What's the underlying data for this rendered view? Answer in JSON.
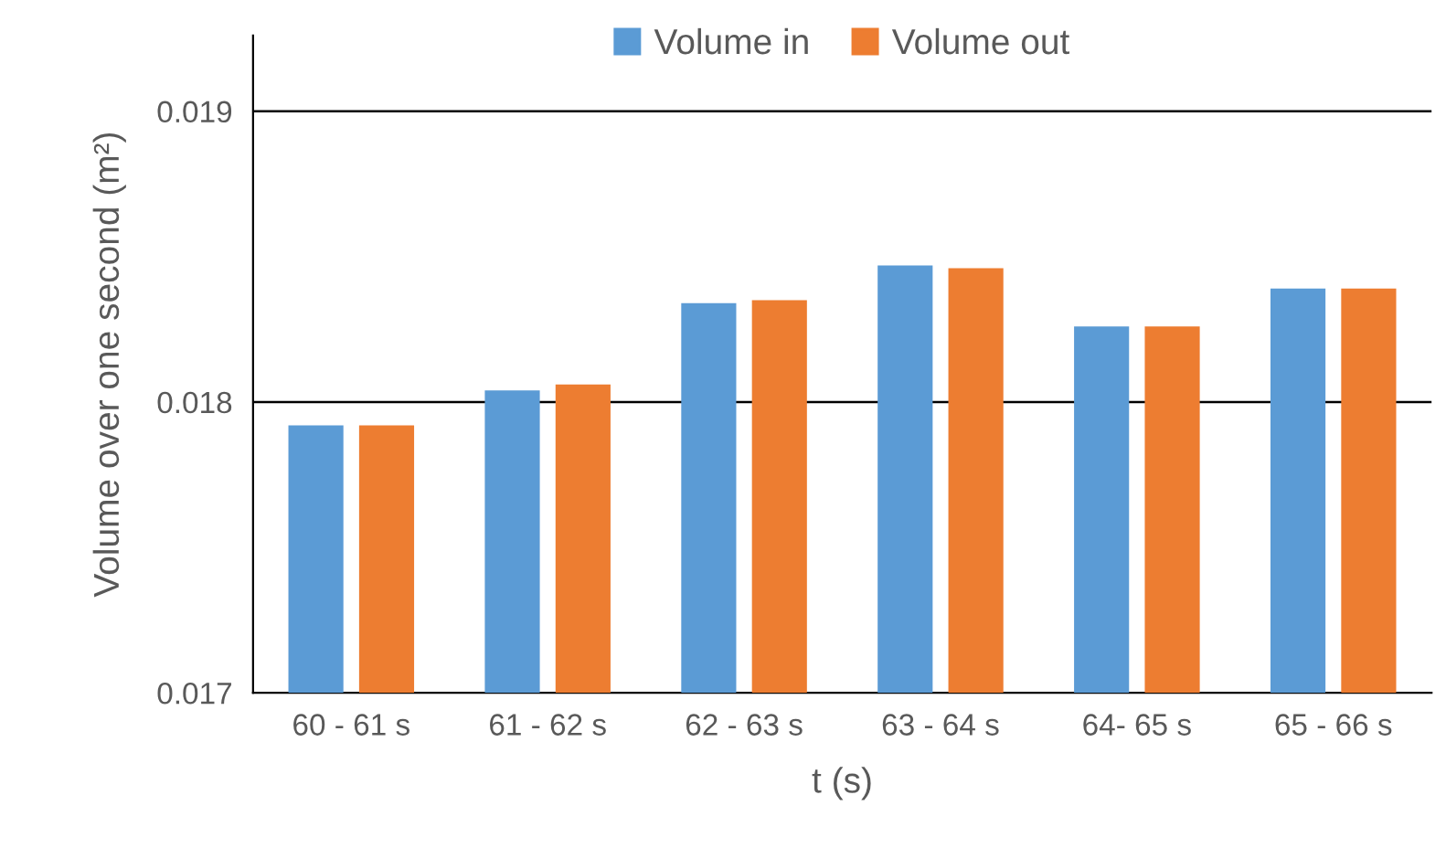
{
  "chart_data": {
    "type": "bar",
    "xlabel": "t (s)",
    "ylabel": "Volume over one second (m²)",
    "categories": [
      "60 - 61 s",
      "61 - 62 s",
      "62 - 63 s",
      "63 - 64 s",
      "64- 65 s",
      "65 - 66 s"
    ],
    "series": [
      {
        "name": "Volume in",
        "color": "#5b9bd5",
        "values": [
          0.01792,
          0.01804,
          0.01834,
          0.01847,
          0.01826,
          0.01839
        ]
      },
      {
        "name": "Volume out",
        "color": "#ed7d31",
        "values": [
          0.01792,
          0.01806,
          0.01835,
          0.01846,
          0.01826,
          0.01839
        ]
      }
    ],
    "ylim": [
      0.017,
      0.01926
    ],
    "yticks": [
      0.017,
      0.018,
      0.019
    ],
    "grid": "y",
    "legend": "top"
  }
}
